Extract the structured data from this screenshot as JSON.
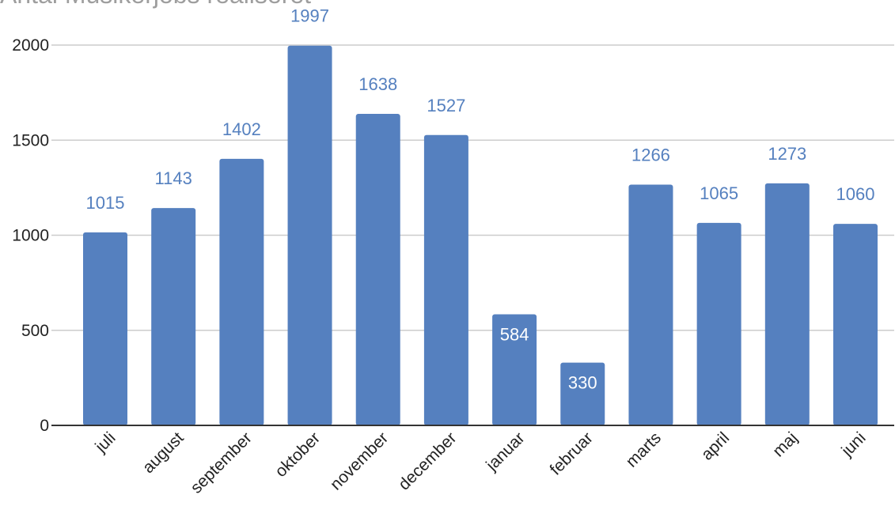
{
  "chart_data": {
    "type": "bar",
    "title": "Antal Musikerjobs realiseret",
    "categories": [
      "juli",
      "august",
      "september",
      "oktober",
      "november",
      "december",
      "januar",
      "februar",
      "marts",
      "april",
      "maj",
      "juni"
    ],
    "values": [
      1015,
      1143,
      1402,
      1997,
      1638,
      1527,
      584,
      330,
      1266,
      1065,
      1273,
      1060
    ],
    "ylim": [
      0,
      2000
    ],
    "yticks": [
      0,
      500,
      1000,
      1500,
      2000
    ],
    "xlabel": "",
    "ylabel": "",
    "grid": true,
    "legend": "none",
    "colors": {
      "bar": "#5580bf",
      "label_outside": "#5580bf",
      "label_inside": "#ffffff",
      "grid": "#cccccc",
      "axis": "#333333"
    }
  }
}
